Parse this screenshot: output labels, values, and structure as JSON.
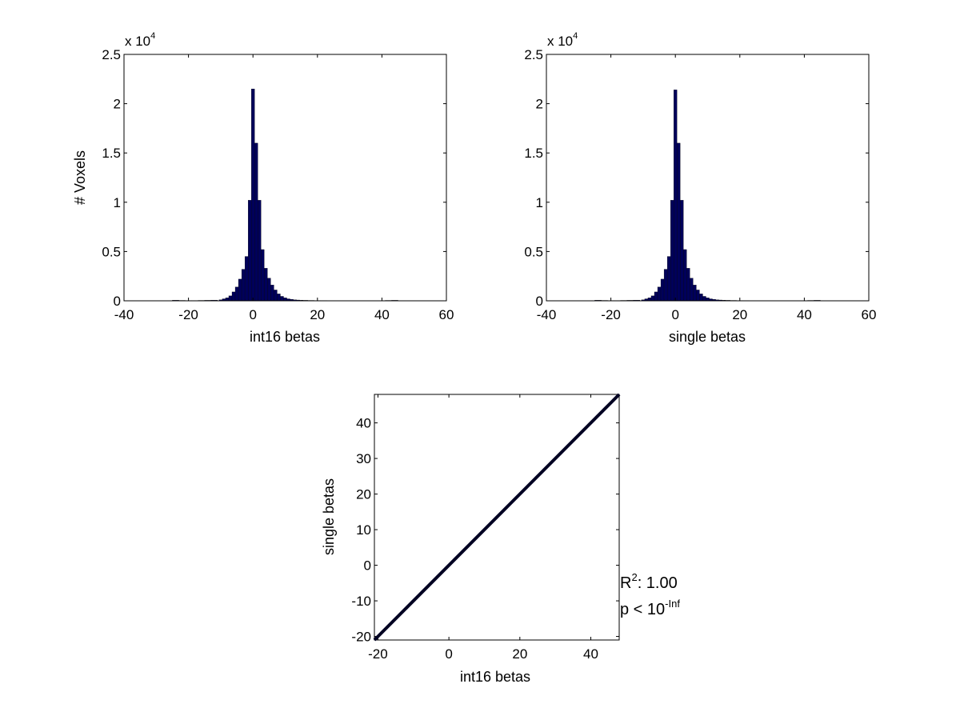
{
  "chart_data": [
    {
      "type": "bar",
      "subtype": "histogram",
      "xlabel": "int16 betas",
      "ylabel": "# Voxels",
      "xlim": [
        -40,
        60
      ],
      "ylim": [
        0,
        25000
      ],
      "xticks": [
        "-40",
        "-20",
        "0",
        "20",
        "40",
        "60"
      ],
      "yticks": [
        "0",
        "0.5",
        "1",
        "1.5",
        "2",
        "2.5"
      ],
      "y_exponent_label": "x 10",
      "y_exponent_power": "4",
      "bar_color": "#00005a",
      "bins": [
        -10,
        -9,
        -8,
        -7,
        -6,
        -5,
        -4,
        -3,
        -2,
        -1,
        0,
        1,
        2,
        3,
        4,
        5,
        6,
        7,
        8,
        9,
        10,
        11,
        12,
        13,
        14,
        15
      ],
      "values": [
        100,
        200,
        300,
        500,
        900,
        1400,
        2200,
        3200,
        4500,
        10200,
        21500,
        16000,
        10200,
        5200,
        3300,
        2300,
        1600,
        1100,
        700,
        450,
        300,
        200,
        150,
        100,
        80,
        60
      ],
      "tail_bins": [
        -24,
        -22,
        -20,
        -18,
        -16,
        -14,
        -12,
        16,
        18,
        20,
        22,
        24,
        26,
        28,
        30,
        32,
        34,
        36,
        38,
        40,
        42,
        44
      ],
      "tail_values": [
        60,
        40,
        30,
        30,
        40,
        50,
        70,
        50,
        40,
        30,
        30,
        25,
        25,
        20,
        20,
        20,
        20,
        20,
        20,
        20,
        40,
        50
      ]
    },
    {
      "type": "bar",
      "subtype": "histogram",
      "xlabel": "single betas",
      "ylabel": "",
      "xlim": [
        -40,
        60
      ],
      "ylim": [
        0,
        25000
      ],
      "xticks": [
        "-40",
        "-20",
        "0",
        "20",
        "40",
        "60"
      ],
      "yticks": [
        "0",
        "0.5",
        "1",
        "1.5",
        "2",
        "2.5"
      ],
      "y_exponent_label": "x 10",
      "y_exponent_power": "4",
      "bar_color": "#00005a",
      "bins": [
        -10,
        -9,
        -8,
        -7,
        -6,
        -5,
        -4,
        -3,
        -2,
        -1,
        0,
        1,
        2,
        3,
        4,
        5,
        6,
        7,
        8,
        9,
        10,
        11,
        12,
        13,
        14,
        15
      ],
      "values": [
        100,
        200,
        300,
        500,
        900,
        1400,
        2200,
        3200,
        4500,
        10200,
        21400,
        16000,
        10200,
        5200,
        3300,
        2300,
        1600,
        1100,
        700,
        450,
        300,
        200,
        150,
        100,
        80,
        60
      ],
      "tail_bins": [
        -24,
        -22,
        -20,
        -18,
        -16,
        -14,
        -12,
        16,
        18,
        20,
        22,
        24,
        26,
        28,
        30,
        32,
        34,
        36,
        38,
        40,
        42,
        44
      ],
      "tail_values": [
        60,
        40,
        30,
        30,
        40,
        50,
        70,
        50,
        40,
        30,
        30,
        25,
        25,
        20,
        20,
        20,
        20,
        20,
        20,
        20,
        40,
        50
      ]
    },
    {
      "type": "scatter",
      "xlabel": "int16 betas",
      "ylabel": "single betas",
      "xlim": [
        -21,
        48
      ],
      "ylim": [
        -21,
        48
      ],
      "xticks": [
        "-20",
        "0",
        "20",
        "40"
      ],
      "yticks": [
        "-20",
        "-10",
        "0",
        "10",
        "20",
        "30",
        "40"
      ],
      "line_color": "#000022",
      "points_x": [
        -21,
        48
      ],
      "points_y": [
        -21,
        48
      ],
      "annotation": {
        "r2_prefix": "R",
        "r2_sup": "2",
        "r2_suffix": ": 1.00",
        "p_prefix": "p < 10",
        "p_sup": "-Inf"
      }
    }
  ]
}
